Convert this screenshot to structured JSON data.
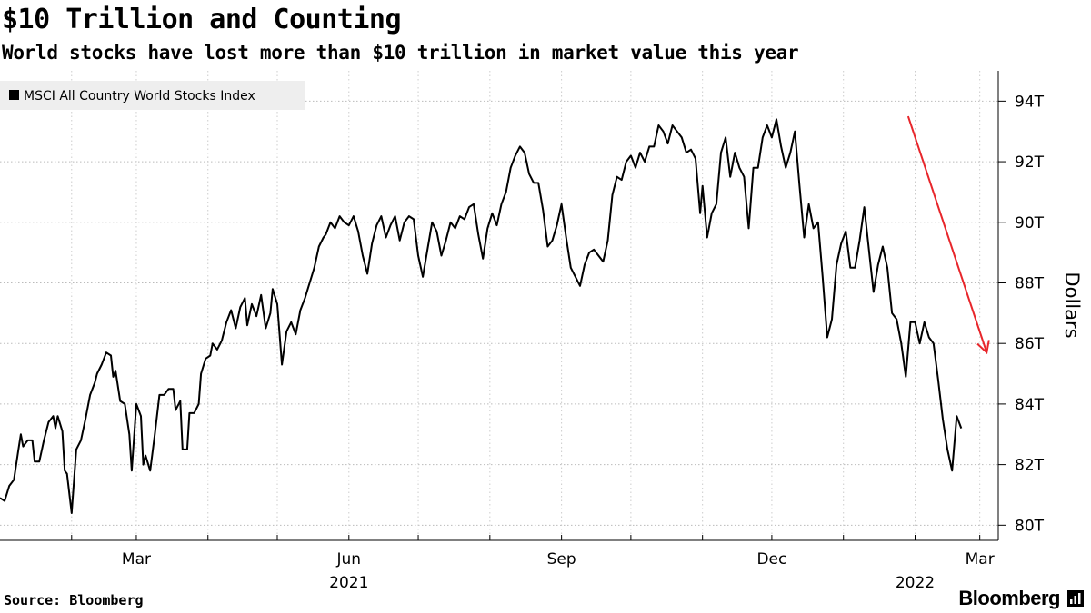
{
  "header": {
    "title": "$10 Trillion and Counting",
    "subtitle": "World stocks have lost more than $10 trillion in market value this year"
  },
  "footer": {
    "source": "Source: Bloomberg",
    "brand": "Bloomberg"
  },
  "chart_data": {
    "type": "line",
    "title": "$10 Trillion and Counting",
    "subtitle": "World stocks have lost more than $10 trillion in market value this year",
    "ylabel": "Dollars",
    "ylim": [
      79.5,
      95.0
    ],
    "yticks": [
      80,
      82,
      84,
      86,
      88,
      90,
      92,
      94
    ],
    "ytick_labels": [
      "80T",
      "82T",
      "84T",
      "86T",
      "88T",
      "90T",
      "92T",
      "94T"
    ],
    "xlim": [
      "2021-01-01",
      "2022-03-09"
    ],
    "xticks": [
      "2021-03-01",
      "2021-06-01",
      "2021-09-01",
      "2021-12-01",
      "2022-03-01"
    ],
    "xtick_labels": [
      "Mar",
      "Jun",
      "Sep",
      "Dec",
      "Mar"
    ],
    "year_labels": [
      {
        "label": "2021",
        "date": "2021-06-01"
      },
      {
        "label": "2022",
        "date": "2022-02-01"
      }
    ],
    "legend": {
      "position": "top-left"
    },
    "grid": "horizontal-dotted",
    "colors": {
      "series": "#000000",
      "annotation_arrow": "#e8262b",
      "legend_bg": "#eeeeee"
    },
    "annotations": [
      {
        "type": "arrow",
        "color": "#e8262b",
        "from": {
          "x": "2022-01-29",
          "y": 93.5
        },
        "to": {
          "x": "2022-03-04",
          "y": 85.7
        }
      }
    ],
    "series": [
      {
        "name": "MSCI All Country World Stocks Index",
        "points": [
          [
            "2021-01-01",
            80.9
          ],
          [
            "2021-01-03",
            80.8
          ],
          [
            "2021-01-05",
            81.3
          ],
          [
            "2021-01-07",
            81.5
          ],
          [
            "2021-01-09",
            82.5
          ],
          [
            "2021-01-10",
            83.0
          ],
          [
            "2021-01-11",
            82.6
          ],
          [
            "2021-01-13",
            82.8
          ],
          [
            "2021-01-15",
            82.8
          ],
          [
            "2021-01-16",
            82.1
          ],
          [
            "2021-01-18",
            82.1
          ],
          [
            "2021-01-20",
            82.8
          ],
          [
            "2021-01-22",
            83.4
          ],
          [
            "2021-01-24",
            83.6
          ],
          [
            "2021-01-25",
            83.2
          ],
          [
            "2021-01-26",
            83.6
          ],
          [
            "2021-01-28",
            83.1
          ],
          [
            "2021-01-29",
            81.8
          ],
          [
            "2021-01-30",
            81.7
          ],
          [
            "2021-02-01",
            80.4
          ],
          [
            "2021-02-03",
            82.5
          ],
          [
            "2021-02-05",
            82.8
          ],
          [
            "2021-02-07",
            83.5
          ],
          [
            "2021-02-09",
            84.3
          ],
          [
            "2021-02-11",
            84.7
          ],
          [
            "2021-02-12",
            85.0
          ],
          [
            "2021-02-14",
            85.3
          ],
          [
            "2021-02-16",
            85.7
          ],
          [
            "2021-02-18",
            85.6
          ],
          [
            "2021-02-19",
            84.9
          ],
          [
            "2021-02-20",
            85.1
          ],
          [
            "2021-02-22",
            84.1
          ],
          [
            "2021-02-24",
            84.0
          ],
          [
            "2021-02-26",
            83.0
          ],
          [
            "2021-02-27",
            81.8
          ],
          [
            "2021-03-01",
            84.0
          ],
          [
            "2021-03-03",
            83.6
          ],
          [
            "2021-03-04",
            82.0
          ],
          [
            "2021-03-05",
            82.3
          ],
          [
            "2021-03-07",
            81.8
          ],
          [
            "2021-03-09",
            83.0
          ],
          [
            "2021-03-11",
            84.3
          ],
          [
            "2021-03-13",
            84.3
          ],
          [
            "2021-03-15",
            84.5
          ],
          [
            "2021-03-17",
            84.5
          ],
          [
            "2021-03-18",
            83.8
          ],
          [
            "2021-03-20",
            84.1
          ],
          [
            "2021-03-21",
            82.5
          ],
          [
            "2021-03-23",
            82.5
          ],
          [
            "2021-03-24",
            83.7
          ],
          [
            "2021-03-26",
            83.7
          ],
          [
            "2021-03-28",
            84.0
          ],
          [
            "2021-03-29",
            85.0
          ],
          [
            "2021-03-31",
            85.5
          ],
          [
            "2021-04-02",
            85.6
          ],
          [
            "2021-04-03",
            86.0
          ],
          [
            "2021-04-05",
            85.8
          ],
          [
            "2021-04-07",
            86.1
          ],
          [
            "2021-04-09",
            86.7
          ],
          [
            "2021-04-11",
            87.1
          ],
          [
            "2021-04-13",
            86.5
          ],
          [
            "2021-04-15",
            87.2
          ],
          [
            "2021-04-17",
            87.5
          ],
          [
            "2021-04-18",
            86.6
          ],
          [
            "2021-04-20",
            87.3
          ],
          [
            "2021-04-22",
            86.9
          ],
          [
            "2021-04-24",
            87.6
          ],
          [
            "2021-04-26",
            86.5
          ],
          [
            "2021-04-28",
            87.0
          ],
          [
            "2021-04-29",
            87.8
          ],
          [
            "2021-05-01",
            87.3
          ],
          [
            "2021-05-03",
            85.3
          ],
          [
            "2021-05-05",
            86.4
          ],
          [
            "2021-05-07",
            86.7
          ],
          [
            "2021-05-09",
            86.3
          ],
          [
            "2021-05-11",
            87.1
          ],
          [
            "2021-05-13",
            87.5
          ],
          [
            "2021-05-15",
            88.0
          ],
          [
            "2021-05-17",
            88.5
          ],
          [
            "2021-05-19",
            89.2
          ],
          [
            "2021-05-21",
            89.5
          ],
          [
            "2021-05-22",
            89.6
          ],
          [
            "2021-05-24",
            90.0
          ],
          [
            "2021-05-26",
            89.8
          ],
          [
            "2021-05-28",
            90.2
          ],
          [
            "2021-05-30",
            90.0
          ],
          [
            "2021-06-01",
            89.9
          ],
          [
            "2021-06-03",
            90.2
          ],
          [
            "2021-06-05",
            89.7
          ],
          [
            "2021-06-07",
            88.9
          ],
          [
            "2021-06-09",
            88.3
          ],
          [
            "2021-06-11",
            89.3
          ],
          [
            "2021-06-13",
            89.9
          ],
          [
            "2021-06-15",
            90.2
          ],
          [
            "2021-06-17",
            89.5
          ],
          [
            "2021-06-19",
            89.9
          ],
          [
            "2021-06-21",
            90.2
          ],
          [
            "2021-06-23",
            89.4
          ],
          [
            "2021-06-25",
            90.0
          ],
          [
            "2021-06-27",
            90.2
          ],
          [
            "2021-06-29",
            90.1
          ],
          [
            "2021-07-01",
            88.9
          ],
          [
            "2021-07-03",
            88.2
          ],
          [
            "2021-07-05",
            89.1
          ],
          [
            "2021-07-07",
            90.0
          ],
          [
            "2021-07-09",
            89.7
          ],
          [
            "2021-07-11",
            88.9
          ],
          [
            "2021-07-13",
            89.4
          ],
          [
            "2021-07-15",
            90.0
          ],
          [
            "2021-07-17",
            89.8
          ],
          [
            "2021-07-19",
            90.2
          ],
          [
            "2021-07-21",
            90.1
          ],
          [
            "2021-07-23",
            90.5
          ],
          [
            "2021-07-25",
            90.6
          ],
          [
            "2021-07-27",
            89.6
          ],
          [
            "2021-07-29",
            88.8
          ],
          [
            "2021-07-31",
            89.8
          ],
          [
            "2021-08-02",
            90.3
          ],
          [
            "2021-08-04",
            89.9
          ],
          [
            "2021-08-06",
            90.6
          ],
          [
            "2021-08-08",
            91.0
          ],
          [
            "2021-08-10",
            91.8
          ],
          [
            "2021-08-12",
            92.2
          ],
          [
            "2021-08-14",
            92.5
          ],
          [
            "2021-08-16",
            92.3
          ],
          [
            "2021-08-18",
            91.6
          ],
          [
            "2021-08-20",
            91.3
          ],
          [
            "2021-08-22",
            91.3
          ],
          [
            "2021-08-24",
            90.4
          ],
          [
            "2021-08-26",
            89.2
          ],
          [
            "2021-08-28",
            89.4
          ],
          [
            "2021-08-30",
            89.9
          ],
          [
            "2021-09-01",
            90.6
          ],
          [
            "2021-09-03",
            89.5
          ],
          [
            "2021-09-05",
            88.5
          ],
          [
            "2021-09-07",
            88.2
          ],
          [
            "2021-09-09",
            87.9
          ],
          [
            "2021-09-11",
            88.6
          ],
          [
            "2021-09-13",
            89.0
          ],
          [
            "2021-09-15",
            89.1
          ],
          [
            "2021-09-17",
            88.9
          ],
          [
            "2021-09-19",
            88.7
          ],
          [
            "2021-09-21",
            89.4
          ],
          [
            "2021-09-23",
            90.9
          ],
          [
            "2021-09-25",
            91.5
          ],
          [
            "2021-09-27",
            91.4
          ],
          [
            "2021-09-29",
            92.0
          ],
          [
            "2021-10-01",
            92.2
          ],
          [
            "2021-10-03",
            91.8
          ],
          [
            "2021-10-05",
            92.3
          ],
          [
            "2021-10-07",
            92.0
          ],
          [
            "2021-10-09",
            92.5
          ],
          [
            "2021-10-11",
            92.5
          ],
          [
            "2021-10-13",
            93.2
          ],
          [
            "2021-10-15",
            93.0
          ],
          [
            "2021-10-17",
            92.6
          ],
          [
            "2021-10-19",
            93.2
          ],
          [
            "2021-10-21",
            93.0
          ],
          [
            "2021-10-23",
            92.8
          ],
          [
            "2021-10-25",
            92.3
          ],
          [
            "2021-10-27",
            92.4
          ],
          [
            "2021-10-29",
            92.1
          ],
          [
            "2021-10-31",
            90.3
          ],
          [
            "2021-11-01",
            91.2
          ],
          [
            "2021-11-03",
            89.5
          ],
          [
            "2021-11-05",
            90.3
          ],
          [
            "2021-11-07",
            90.6
          ],
          [
            "2021-11-09",
            92.3
          ],
          [
            "2021-11-11",
            92.8
          ],
          [
            "2021-11-13",
            91.5
          ],
          [
            "2021-11-15",
            92.3
          ],
          [
            "2021-11-17",
            91.8
          ],
          [
            "2021-11-19",
            91.5
          ],
          [
            "2021-11-21",
            89.8
          ],
          [
            "2021-11-23",
            91.8
          ],
          [
            "2021-11-25",
            91.8
          ],
          [
            "2021-11-27",
            92.8
          ],
          [
            "2021-11-29",
            93.2
          ],
          [
            "2021-12-01",
            92.8
          ],
          [
            "2021-12-03",
            93.4
          ],
          [
            "2021-12-05",
            92.5
          ],
          [
            "2021-12-07",
            91.8
          ],
          [
            "2021-12-09",
            92.3
          ],
          [
            "2021-12-11",
            93.0
          ],
          [
            "2021-12-13",
            91.2
          ],
          [
            "2021-12-15",
            89.5
          ],
          [
            "2021-12-17",
            90.6
          ],
          [
            "2021-12-19",
            89.8
          ],
          [
            "2021-12-21",
            90.0
          ],
          [
            "2021-12-23",
            88.2
          ],
          [
            "2021-12-25",
            86.2
          ],
          [
            "2021-12-27",
            86.8
          ],
          [
            "2021-12-29",
            88.6
          ],
          [
            "2021-12-31",
            89.3
          ],
          [
            "2022-01-02",
            89.7
          ],
          [
            "2022-01-04",
            88.5
          ],
          [
            "2022-01-06",
            88.5
          ],
          [
            "2022-01-08",
            89.4
          ],
          [
            "2022-01-10",
            90.5
          ],
          [
            "2022-01-12",
            89.1
          ],
          [
            "2022-01-14",
            87.7
          ],
          [
            "2022-01-16",
            88.6
          ],
          [
            "2022-01-18",
            89.2
          ],
          [
            "2022-01-20",
            88.5
          ],
          [
            "2022-01-22",
            87.0
          ],
          [
            "2022-01-24",
            86.8
          ],
          [
            "2022-01-26",
            86.0
          ],
          [
            "2022-01-28",
            84.9
          ],
          [
            "2022-01-30",
            86.7
          ],
          [
            "2022-02-01",
            86.7
          ],
          [
            "2022-02-03",
            86.0
          ],
          [
            "2022-02-05",
            86.7
          ],
          [
            "2022-02-07",
            86.2
          ],
          [
            "2022-02-09",
            86.0
          ],
          [
            "2022-02-11",
            84.8
          ],
          [
            "2022-02-13",
            83.5
          ],
          [
            "2022-02-15",
            82.5
          ],
          [
            "2022-02-17",
            81.8
          ],
          [
            "2022-02-19",
            83.6
          ],
          [
            "2022-02-21",
            83.2
          ]
        ]
      }
    ]
  }
}
